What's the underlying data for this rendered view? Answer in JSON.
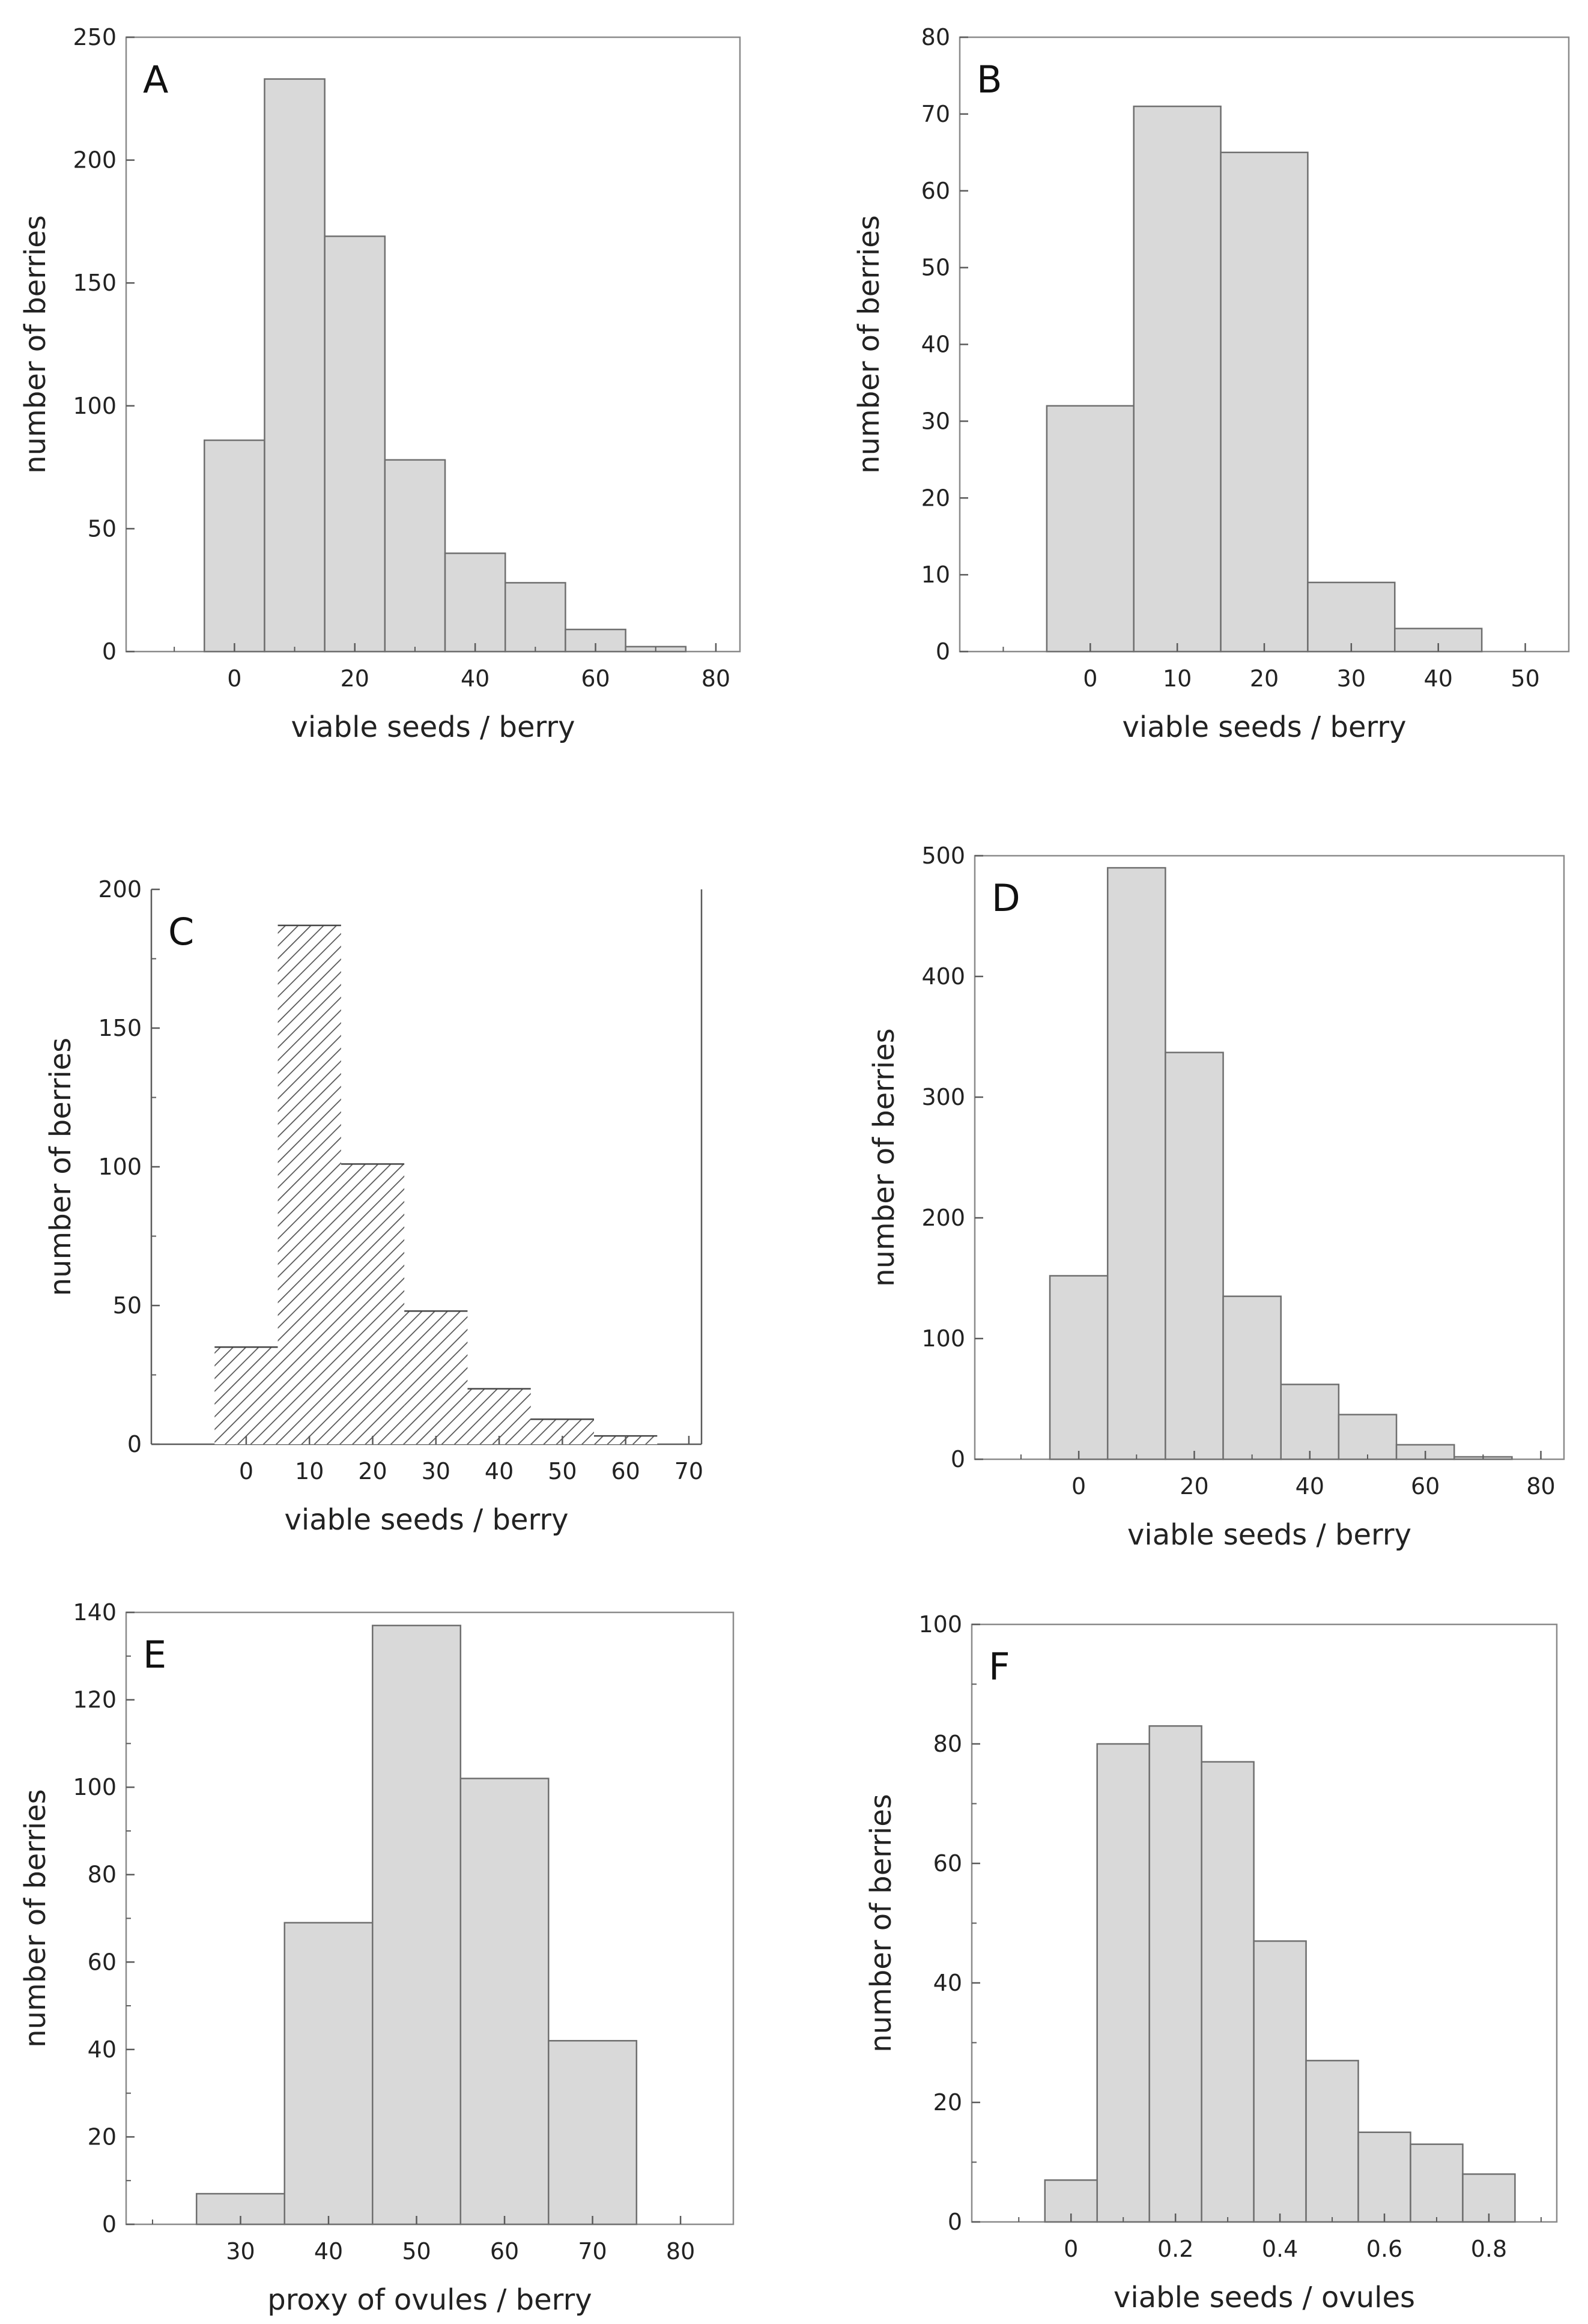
{
  "chart_data": [
    {
      "type": "bar",
      "panel": "A",
      "style": "solid",
      "xlabel": "viable seeds / berry",
      "ylabel": "number of berries",
      "bin_width": 10,
      "bin_centers": [
        0,
        10,
        20,
        30,
        40,
        50,
        60,
        70
      ],
      "values": [
        86,
        233,
        169,
        78,
        40,
        28,
        9,
        2
      ],
      "xlim": [
        -18,
        84
      ],
      "ylim": [
        0,
        250
      ],
      "xticks": [
        0,
        20,
        40,
        60,
        80
      ],
      "xminor": [
        -10,
        10,
        30,
        50,
        70
      ],
      "yticks": [
        0,
        50,
        100,
        150,
        200,
        250
      ],
      "yminor": [],
      "frame": true
    },
    {
      "type": "bar",
      "panel": "B",
      "style": "solid",
      "xlabel": "viable seeds / berry",
      "ylabel": "number of berries",
      "bin_width": 10,
      "bin_centers": [
        0,
        10,
        20,
        30,
        40
      ],
      "values": [
        32,
        71,
        65,
        9,
        3
      ],
      "xlim": [
        -15,
        55
      ],
      "ylim": [
        0,
        80
      ],
      "xticks": [
        0,
        10,
        20,
        30,
        40,
        50
      ],
      "xminor": [
        -10
      ],
      "yticks": [
        0,
        10,
        20,
        30,
        40,
        50,
        60,
        70,
        80
      ],
      "yminor": [],
      "frame": true
    },
    {
      "type": "bar",
      "panel": "C",
      "style": "hatched",
      "xlabel": "viable seeds / berry",
      "ylabel": "number of berries",
      "bin_width": 10,
      "bin_centers": [
        0,
        10,
        20,
        30,
        40,
        50,
        60
      ],
      "values": [
        35,
        187,
        101,
        48,
        20,
        9,
        3
      ],
      "xlim": [
        -15,
        72
      ],
      "ylim": [
        0,
        200
      ],
      "xticks": [
        0,
        10,
        20,
        30,
        40,
        50,
        60,
        70
      ],
      "xminor": [],
      "yticks": [
        0,
        50,
        100,
        150,
        200
      ],
      "yminor": [
        25,
        75,
        125,
        175
      ],
      "frame": false
    },
    {
      "type": "bar",
      "panel": "D",
      "style": "solid",
      "xlabel": "viable seeds / berry",
      "ylabel": "number of berries",
      "bin_width": 10,
      "bin_centers": [
        0,
        10,
        20,
        30,
        40,
        50,
        60,
        70
      ],
      "values": [
        152,
        490,
        337,
        135,
        62,
        37,
        12,
        2
      ],
      "xlim": [
        -18,
        84
      ],
      "ylim": [
        0,
        500
      ],
      "xticks": [
        0,
        20,
        40,
        60,
        80
      ],
      "xminor": [
        -10,
        10,
        30,
        50,
        70
      ],
      "yticks": [
        0,
        100,
        200,
        300,
        400,
        500
      ],
      "yminor": [],
      "frame": true
    },
    {
      "type": "bar",
      "panel": "E",
      "style": "solid",
      "xlabel": "proxy of ovules / berry",
      "ylabel": "number of berries",
      "bin_width": 10,
      "bin_centers": [
        30,
        40,
        50,
        60,
        70
      ],
      "values": [
        7,
        69,
        137,
        102,
        42
      ],
      "xlim": [
        17,
        86
      ],
      "ylim": [
        0,
        140
      ],
      "xticks": [
        30,
        40,
        50,
        60,
        70,
        80
      ],
      "xminor": [
        20
      ],
      "yticks": [
        0,
        20,
        40,
        60,
        80,
        100,
        120,
        140
      ],
      "yminor": [
        10,
        30,
        50,
        70,
        90,
        110,
        130
      ],
      "frame": true
    },
    {
      "type": "bar",
      "panel": "F",
      "style": "solid",
      "xlabel": "viable seeds / ovules",
      "ylabel": "number of berries",
      "bin_width": 0.1,
      "bin_centers": [
        0,
        0.1,
        0.2,
        0.3,
        0.4,
        0.5,
        0.6,
        0.7,
        0.8
      ],
      "values": [
        7,
        80,
        83,
        77,
        47,
        27,
        15,
        13,
        8
      ],
      "xlim": [
        -0.19,
        0.93
      ],
      "ylim": [
        0,
        100
      ],
      "xticks": [
        0,
        0.2,
        0.4,
        0.6,
        0.8
      ],
      "xtick_labels": [
        "0",
        "0.2",
        "0.4",
        "0.6",
        "0.8"
      ],
      "xminor": [
        -0.1,
        0.1,
        0.3,
        0.5,
        0.7,
        0.9
      ],
      "yticks": [
        0,
        20,
        40,
        60,
        80,
        100
      ],
      "yminor": [
        10,
        30,
        50,
        70,
        90
      ],
      "frame": true
    }
  ]
}
